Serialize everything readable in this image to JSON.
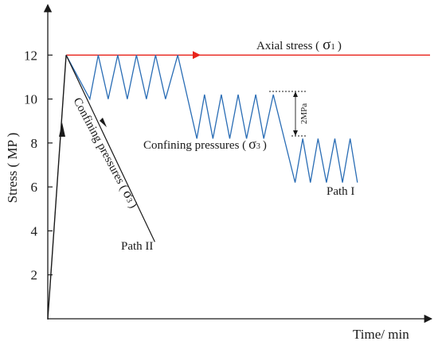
{
  "chart_data": {
    "type": "line",
    "xlabel": "Time/ min",
    "ylabel": "Stress ( MP )",
    "ylim": [
      0,
      14
    ],
    "yticks": [
      2,
      4,
      6,
      8,
      10,
      12
    ],
    "grid": false,
    "annotations": {
      "axial": "Axial stress (",
      "axial_sym": "σ",
      "axial_sub": "1",
      "axial_close": ")",
      "confining": "Confining pressures (",
      "confining_sym": "σ",
      "confining_sub": "3",
      "confining_close": ")",
      "confining_rot": "Confining pressures (",
      "confining_rot_sym": "σ",
      "confining_rot_sub": "3",
      "confining_rot_close": ")",
      "path1": "Path I",
      "path2": "Path II",
      "delta": "2MPa"
    },
    "colors": {
      "axial": "#e8231a",
      "confining_path1": "#2a6db5",
      "axis": "#1a1a1a"
    },
    "series": [
      {
        "name": "Axial stress (σ1)",
        "x": [
          0,
          0.048,
          1.0
        ],
        "y": [
          0,
          12,
          12
        ]
      },
      {
        "name": "Path I",
        "x": [
          0.048,
          0.11,
          0.132,
          0.158,
          0.183,
          0.208,
          0.232,
          0.258,
          0.282,
          0.308,
          0.34,
          0.39,
          0.41,
          0.432,
          0.454,
          0.476,
          0.498,
          0.52,
          0.544,
          0.565,
          0.59,
          0.647,
          0.667,
          0.687,
          0.707,
          0.729,
          0.751,
          0.771,
          0.791,
          0.81
        ],
        "y": [
          12,
          10,
          12,
          10,
          12,
          10,
          12,
          10,
          12,
          10,
          12,
          8.2,
          10.2,
          8.2,
          10.2,
          8.2,
          10.2,
          8.2,
          10.2,
          8.2,
          10.2,
          6.2,
          8.2,
          6.2,
          8.2,
          6.2,
          8.2,
          6.2,
          8.2,
          6.2
        ]
      },
      {
        "name": "Path II",
        "x": [
          0.048,
          0.28
        ],
        "y": [
          12,
          3.5
        ]
      }
    ]
  }
}
